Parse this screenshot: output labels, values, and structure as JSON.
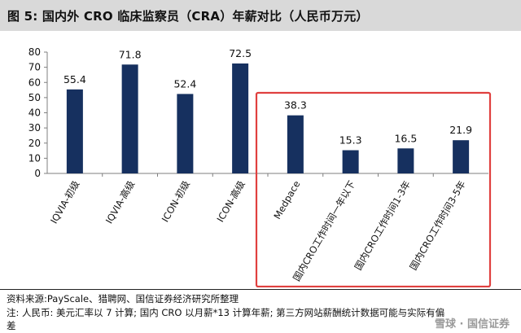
{
  "figure": {
    "title": "图 5: 国内外 CRO 临床监察员（CRA）年薪对比（人民币万元）",
    "source": "资料来源:PayScale、猎聘网、国信证券经济研究所整理",
    "note": "注: 人民币: 美元汇率以 7 计算; 国内 CRO 以月薪*13 计算年薪; 第三方网站薪酬统计数据可能与实际有偏差",
    "watermark": "雪球 · 国信证券"
  },
  "colors": {
    "bar": "#16305f",
    "highlight_box": "#e0403f",
    "axis": "#7f7f7f",
    "title_bg": "#d9d9d9"
  },
  "chart_data": {
    "type": "bar",
    "categories": [
      "IQVIA-初级",
      "IQVIA-高级",
      "ICON-初级",
      "ICON-高级",
      "Medpace",
      "国内CRO工作时间一年以下",
      "国内CRO工作时间1-3年",
      "国内CRO工作时间3-5年"
    ],
    "values": [
      55.4,
      71.8,
      52.4,
      72.5,
      38.3,
      15.3,
      16.5,
      21.9
    ],
    "value_labels": [
      "55.4",
      "71.8",
      "52.4",
      "72.5",
      "38.3",
      "15.3",
      "16.5",
      "21.9"
    ],
    "yticks": [
      "0",
      "10",
      "20",
      "30",
      "40",
      "50",
      "60",
      "70",
      "80"
    ],
    "ylim": [
      0,
      80
    ],
    "highlight_from_index": 4,
    "grid": false
  }
}
